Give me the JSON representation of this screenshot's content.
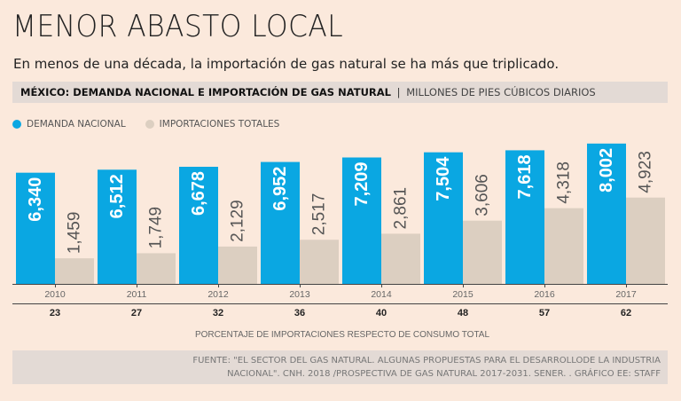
{
  "title": "MENOR ABASTO LOCAL",
  "subtitle": "En menos de una década, la importación de gas natural se ha más que triplicado.",
  "chart_header": {
    "title": "MÉXICO: DEMANDA NACIONAL E IMPORTACIÓN DE GAS NATURAL",
    "separator": "|",
    "units": "MILLONES DE PIES CÚBICOS DIARIOS"
  },
  "colors": {
    "demanda": "#0aa7e2",
    "importaciones": "#dccfc1",
    "background": "#fbe9dc",
    "panel": "#e3dad5"
  },
  "chart_data": {
    "type": "bar",
    "categories": [
      "2010",
      "2011",
      "2012",
      "2013",
      "2014",
      "2015",
      "2016",
      "2017"
    ],
    "series": [
      {
        "name": "DEMANDA NACIONAL",
        "values": [
          6340,
          6512,
          6678,
          6952,
          7209,
          7504,
          7618,
          8002
        ],
        "labels": [
          "6,340",
          "6,512",
          "6,678",
          "6,952",
          "7,209",
          "7,504",
          "7,618",
          "8,002"
        ]
      },
      {
        "name": "IMPORTACIONES TOTALES",
        "values": [
          1459,
          1749,
          2129,
          2517,
          2861,
          3606,
          4318,
          4923
        ],
        "labels": [
          "1,459",
          "1,749",
          "2,129",
          "2,517",
          "2,861",
          "3,606",
          "4,318",
          "4,923"
        ]
      }
    ],
    "percentages": [
      "23",
      "27",
      "32",
      "36",
      "40",
      "48",
      "57",
      "62"
    ],
    "percentage_label": "PORCENTAJE DE IMPORTACIONES RESPECTO DE CONSUMO TOTAL",
    "ylim": [
      0,
      8600
    ],
    "legend_position": "top-left"
  },
  "source": "FUENTE: \"EL SECTOR DEL GAS NATURAL. ALGUNAS PROPUESTAS PARA EL DESARROLLODE LA INDUSTRIA NACIONAL\". CNH. 2018 /PROSPECTIVA DE GAS NATURAL 2017-2031. SENER.  . GRÁFICO EE: STAFF"
}
